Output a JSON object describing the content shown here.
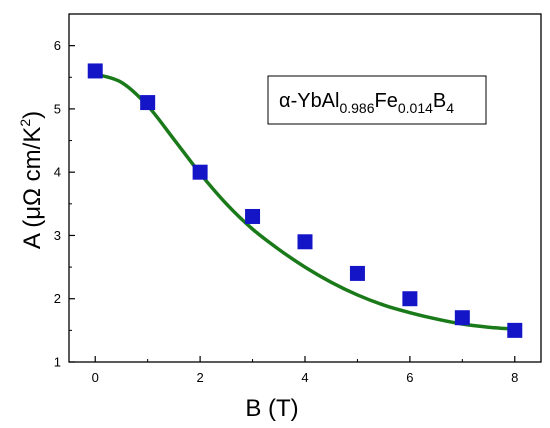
{
  "chart_data": {
    "type": "scatter",
    "xlabel": "B (T)",
    "ylabel": {
      "prefix": "A (",
      "mu_omega": "μΩ",
      "unit": " cm/K",
      "superscript": "2",
      "suffix": ")"
    },
    "xlim": [
      -0.5,
      8.5
    ],
    "ylim": [
      1.0,
      6.5
    ],
    "x_ticks": [
      "0",
      "2",
      "4",
      "6",
      "8"
    ],
    "y_ticks": [
      "1",
      "2",
      "3",
      "4",
      "5",
      "6"
    ],
    "grid": false,
    "legend": {
      "placement": "top-right",
      "parts": [
        {
          "text": "α-YbAl",
          "sub": false
        },
        {
          "text": "0.986",
          "sub": true
        },
        {
          "text": "Fe",
          "sub": false
        },
        {
          "text": "0.014",
          "sub": true
        },
        {
          "text": "B",
          "sub": false
        },
        {
          "text": "4",
          "sub": true
        }
      ]
    },
    "series": [
      {
        "kind": "points",
        "marker": "square",
        "color": "#1515c8",
        "x": [
          0,
          1,
          2,
          3,
          4,
          5,
          6,
          7,
          8
        ],
        "y": [
          5.6,
          5.1,
          4.0,
          3.3,
          2.9,
          2.4,
          2.0,
          1.7,
          1.5
        ]
      },
      {
        "kind": "fit-line",
        "color": "#1a7a1a",
        "x": [
          0,
          0.5,
          1,
          1.5,
          2,
          2.5,
          3,
          3.5,
          4,
          4.5,
          5,
          5.5,
          6,
          6.5,
          7,
          7.5,
          8
        ],
        "y": [
          5.55,
          5.42,
          5.05,
          4.52,
          3.98,
          3.5,
          3.1,
          2.78,
          2.5,
          2.26,
          2.06,
          1.9,
          1.78,
          1.68,
          1.6,
          1.55,
          1.52
        ]
      }
    ]
  }
}
